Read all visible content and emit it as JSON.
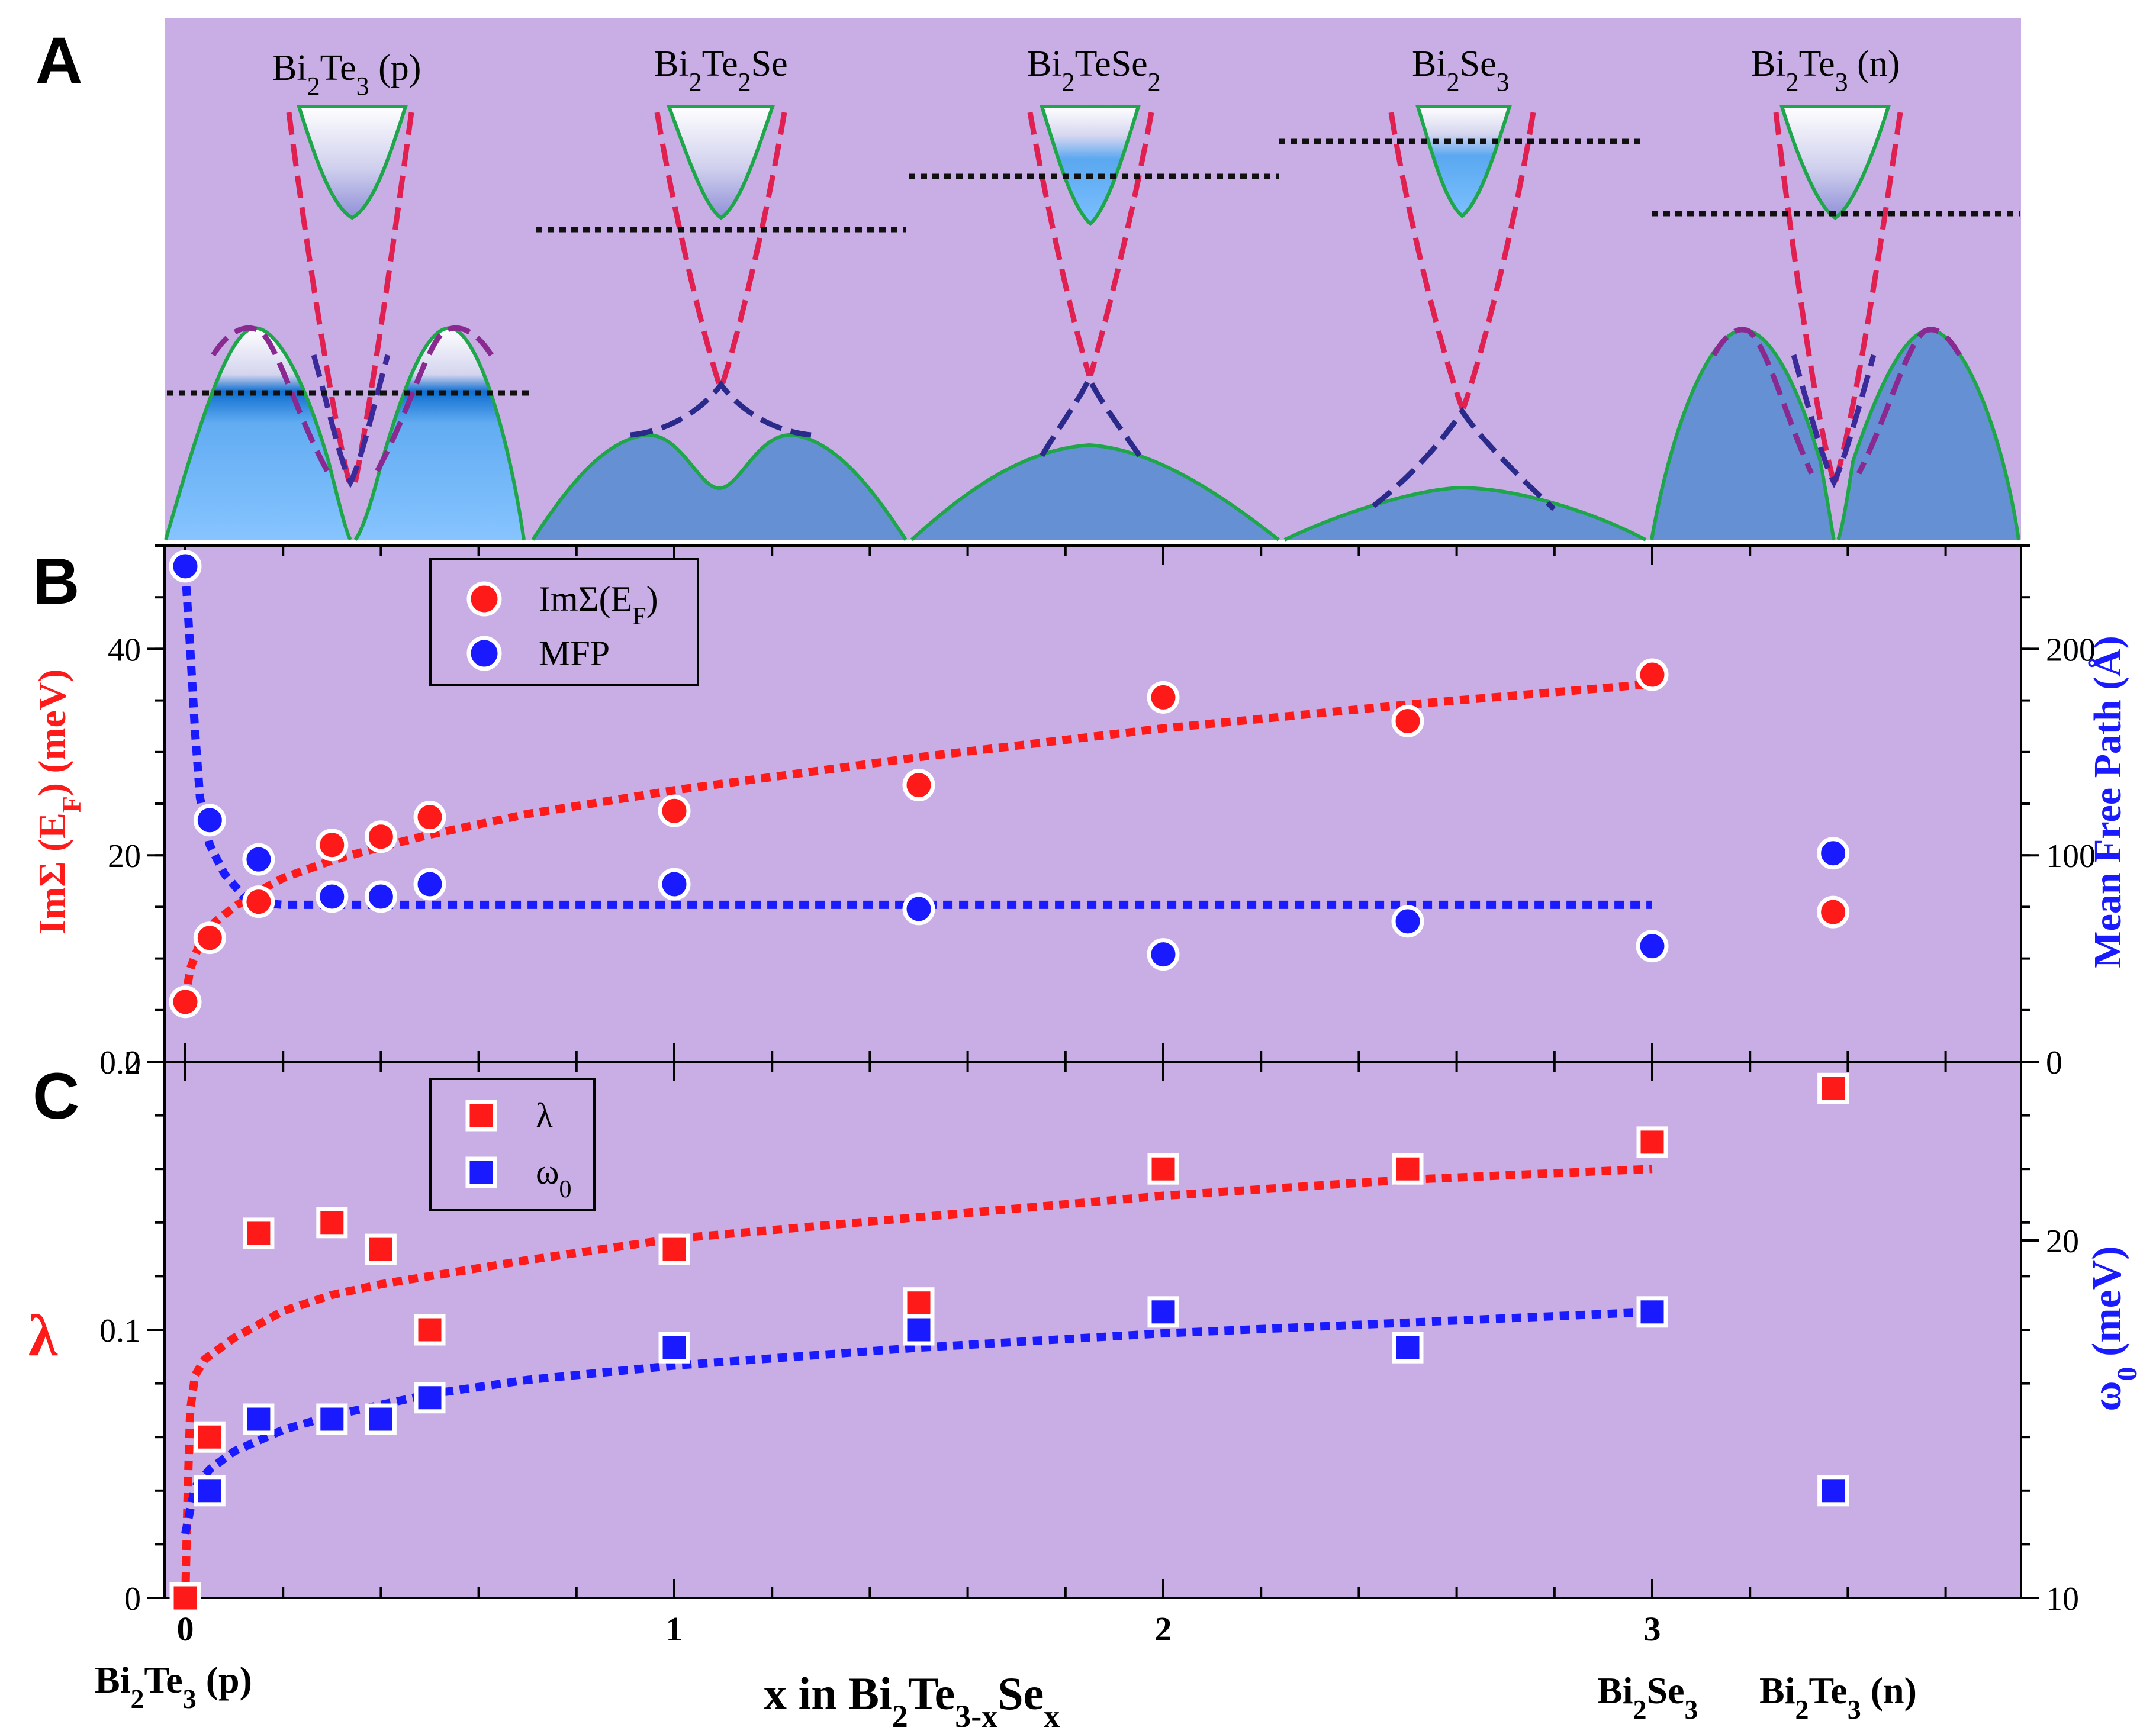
{
  "panels": {
    "a_letter": "A",
    "b_letter": "B",
    "c_letter": "C"
  },
  "panel_a": {
    "bands": [
      {
        "base": "Bi",
        "s1": "2",
        "mid": "Te",
        "s2": "3",
        "tail": " (p)"
      },
      {
        "base": "Bi",
        "s1": "2",
        "mid": "Te",
        "s2": "2",
        "tail": "Se"
      },
      {
        "base": "Bi",
        "s1": "2",
        "mid": "TeSe",
        "s2": "2",
        "tail": ""
      },
      {
        "base": "Bi",
        "s1": "2",
        "mid": "Se",
        "s2": "3",
        "tail": ""
      },
      {
        "base": "Bi",
        "s1": "2",
        "mid": "Te",
        "s2": "3",
        "tail": " (n)"
      }
    ]
  },
  "x_axis": {
    "ticks": [
      "0",
      "1",
      "2",
      "3"
    ],
    "title": {
      "p1": "x in Bi",
      "s1": "2",
      "p2": "Te",
      "s2": "3-x",
      "p3": "Se",
      "s3": "x"
    },
    "bottom_labels": [
      {
        "p1": "Bi",
        "s1": "2",
        "p2": "Te",
        "s2": "3",
        "p3": " (p)"
      },
      {
        "p1": "Bi",
        "s1": "2",
        "p2": "Se",
        "s2": "3",
        "p3": ""
      },
      {
        "p1": "Bi",
        "s1": "2",
        "p2": "Te",
        "s2": "3",
        "p3": " (n)"
      }
    ]
  },
  "chart_data": [
    {
      "type": "scatter",
      "panel": "B",
      "y_left_title": {
        "p1": "ImΣ (E",
        "sub": "F",
        "p2": ") (meV)"
      },
      "y_right_title": "Mean Free Path (Å)",
      "left_ticks": [
        "0",
        "20",
        "40"
      ],
      "right_ticks": [
        "0",
        "100",
        "200"
      ],
      "xlim": [
        -0.05,
        3.75
      ],
      "ylim_left": [
        0,
        50
      ],
      "ylim_right": [
        0,
        250
      ],
      "legend": [
        {
          "p1": "ImΣ(E",
          "sub": "F",
          "p2": ")",
          "color": "#ff1a1a"
        },
        {
          "p1": "MFP",
          "sub": "",
          "p2": "",
          "color": "#1a1aff"
        }
      ],
      "series": [
        {
          "name": "ImΣ(EF)",
          "color": "#ff1a1a",
          "axis": "left",
          "x": [
            0,
            0.05,
            0.15,
            0.3,
            0.4,
            0.5,
            1.0,
            1.5,
            2.0,
            2.5,
            3.0,
            3.37
          ],
          "y": [
            5.8,
            12.0,
            15.5,
            21.0,
            21.8,
            23.7,
            24.3,
            26.8,
            35.3,
            33.0,
            37.5,
            14.5
          ]
        },
        {
          "name": "MFP",
          "color": "#1a1aff",
          "axis": "right",
          "x": [
            0,
            0.05,
            0.15,
            0.3,
            0.4,
            0.5,
            1.0,
            1.5,
            2.0,
            2.5,
            3.0,
            3.37
          ],
          "y": [
            240,
            117,
            98,
            80,
            80,
            86,
            86,
            74,
            52,
            68,
            56,
            101
          ]
        }
      ],
      "fits": [
        {
          "name": "ImΣ fit",
          "color": "#ff1a1a",
          "axis": "left",
          "x": [
            0.0,
            0.01,
            0.03,
            0.06,
            0.1,
            0.15,
            0.2,
            0.3,
            0.4,
            0.5,
            0.7,
            1.0,
            1.5,
            2.0,
            2.5,
            3.0
          ],
          "y": [
            6,
            9,
            11.5,
            13.5,
            15,
            16.5,
            17.8,
            19.5,
            20.8,
            22,
            24,
            26.3,
            29.5,
            32.3,
            34.6,
            36.6
          ]
        },
        {
          "name": "MFP fit",
          "color": "#1a1aff",
          "axis": "right",
          "x": [
            0.0,
            0.01,
            0.02,
            0.03,
            0.05,
            0.08,
            0.12,
            0.15,
            0.2,
            0.5,
            1.0,
            2.0,
            3.0
          ],
          "y": [
            238,
            200,
            160,
            128,
            105,
            91,
            80,
            77,
            76,
            76,
            76,
            76,
            76
          ]
        }
      ]
    },
    {
      "type": "scatter",
      "panel": "C",
      "y_left_title": "λ",
      "y_right_title": {
        "p1": "ω",
        "sub": "0",
        "p2": " (meV)"
      },
      "left_ticks": [
        "0",
        "0.1",
        "0.2"
      ],
      "right_ticks": [
        "10",
        "20"
      ],
      "xlim": [
        -0.05,
        3.75
      ],
      "ylim_left": [
        0,
        0.2
      ],
      "ylim_right": [
        10,
        25
      ],
      "legend": [
        {
          "p1": "λ",
          "sub": "",
          "p2": "",
          "color": "#ff1a1a"
        },
        {
          "p1": "ω",
          "sub": "0",
          "p2": "",
          "color": "#1a1aff"
        }
      ],
      "series": [
        {
          "name": "λ",
          "color": "#ff1a1a",
          "axis": "left",
          "x": [
            0,
            0.05,
            0.15,
            0.3,
            0.4,
            0.5,
            1.0,
            1.5,
            2.0,
            2.5,
            3.0,
            3.37
          ],
          "y": [
            0.0,
            0.06,
            0.136,
            0.14,
            0.13,
            0.1,
            0.13,
            0.11,
            0.16,
            0.16,
            0.17,
            0.19
          ]
        },
        {
          "name": "ω0",
          "color": "#1a1aff",
          "axis": "right",
          "x": [
            0.05,
            0.15,
            0.3,
            0.4,
            0.5,
            1.0,
            1.5,
            2.0,
            2.5,
            3.0,
            3.37
          ],
          "y": [
            13.0,
            15.0,
            15.0,
            15.0,
            15.6,
            17.0,
            17.5,
            18.0,
            17.0,
            18.0,
            13.0
          ]
        }
      ],
      "fits": [
        {
          "name": "λ fit",
          "color": "#ff1a1a",
          "axis": "left",
          "x": [
            0.0,
            0.005,
            0.01,
            0.02,
            0.04,
            0.07,
            0.1,
            0.15,
            0.2,
            0.3,
            0.4,
            0.5,
            0.7,
            1.0,
            1.5,
            2.0,
            2.5,
            3.0
          ],
          "y": [
            0.0,
            0.04,
            0.07,
            0.083,
            0.089,
            0.093,
            0.097,
            0.102,
            0.107,
            0.113,
            0.117,
            0.12,
            0.126,
            0.134,
            0.142,
            0.15,
            0.156,
            0.16
          ]
        },
        {
          "name": "ω0 fit",
          "color": "#1a1aff",
          "axis": "right",
          "x": [
            0.0,
            0.02,
            0.05,
            0.1,
            0.15,
            0.2,
            0.3,
            0.4,
            0.5,
            0.7,
            1.0,
            1.5,
            2.0,
            2.5,
            3.0
          ],
          "y": [
            11.8,
            13.1,
            13.6,
            14.1,
            14.4,
            14.7,
            15.1,
            15.4,
            15.7,
            16.1,
            16.5,
            17.0,
            17.4,
            17.7,
            18.0
          ]
        }
      ]
    }
  ]
}
